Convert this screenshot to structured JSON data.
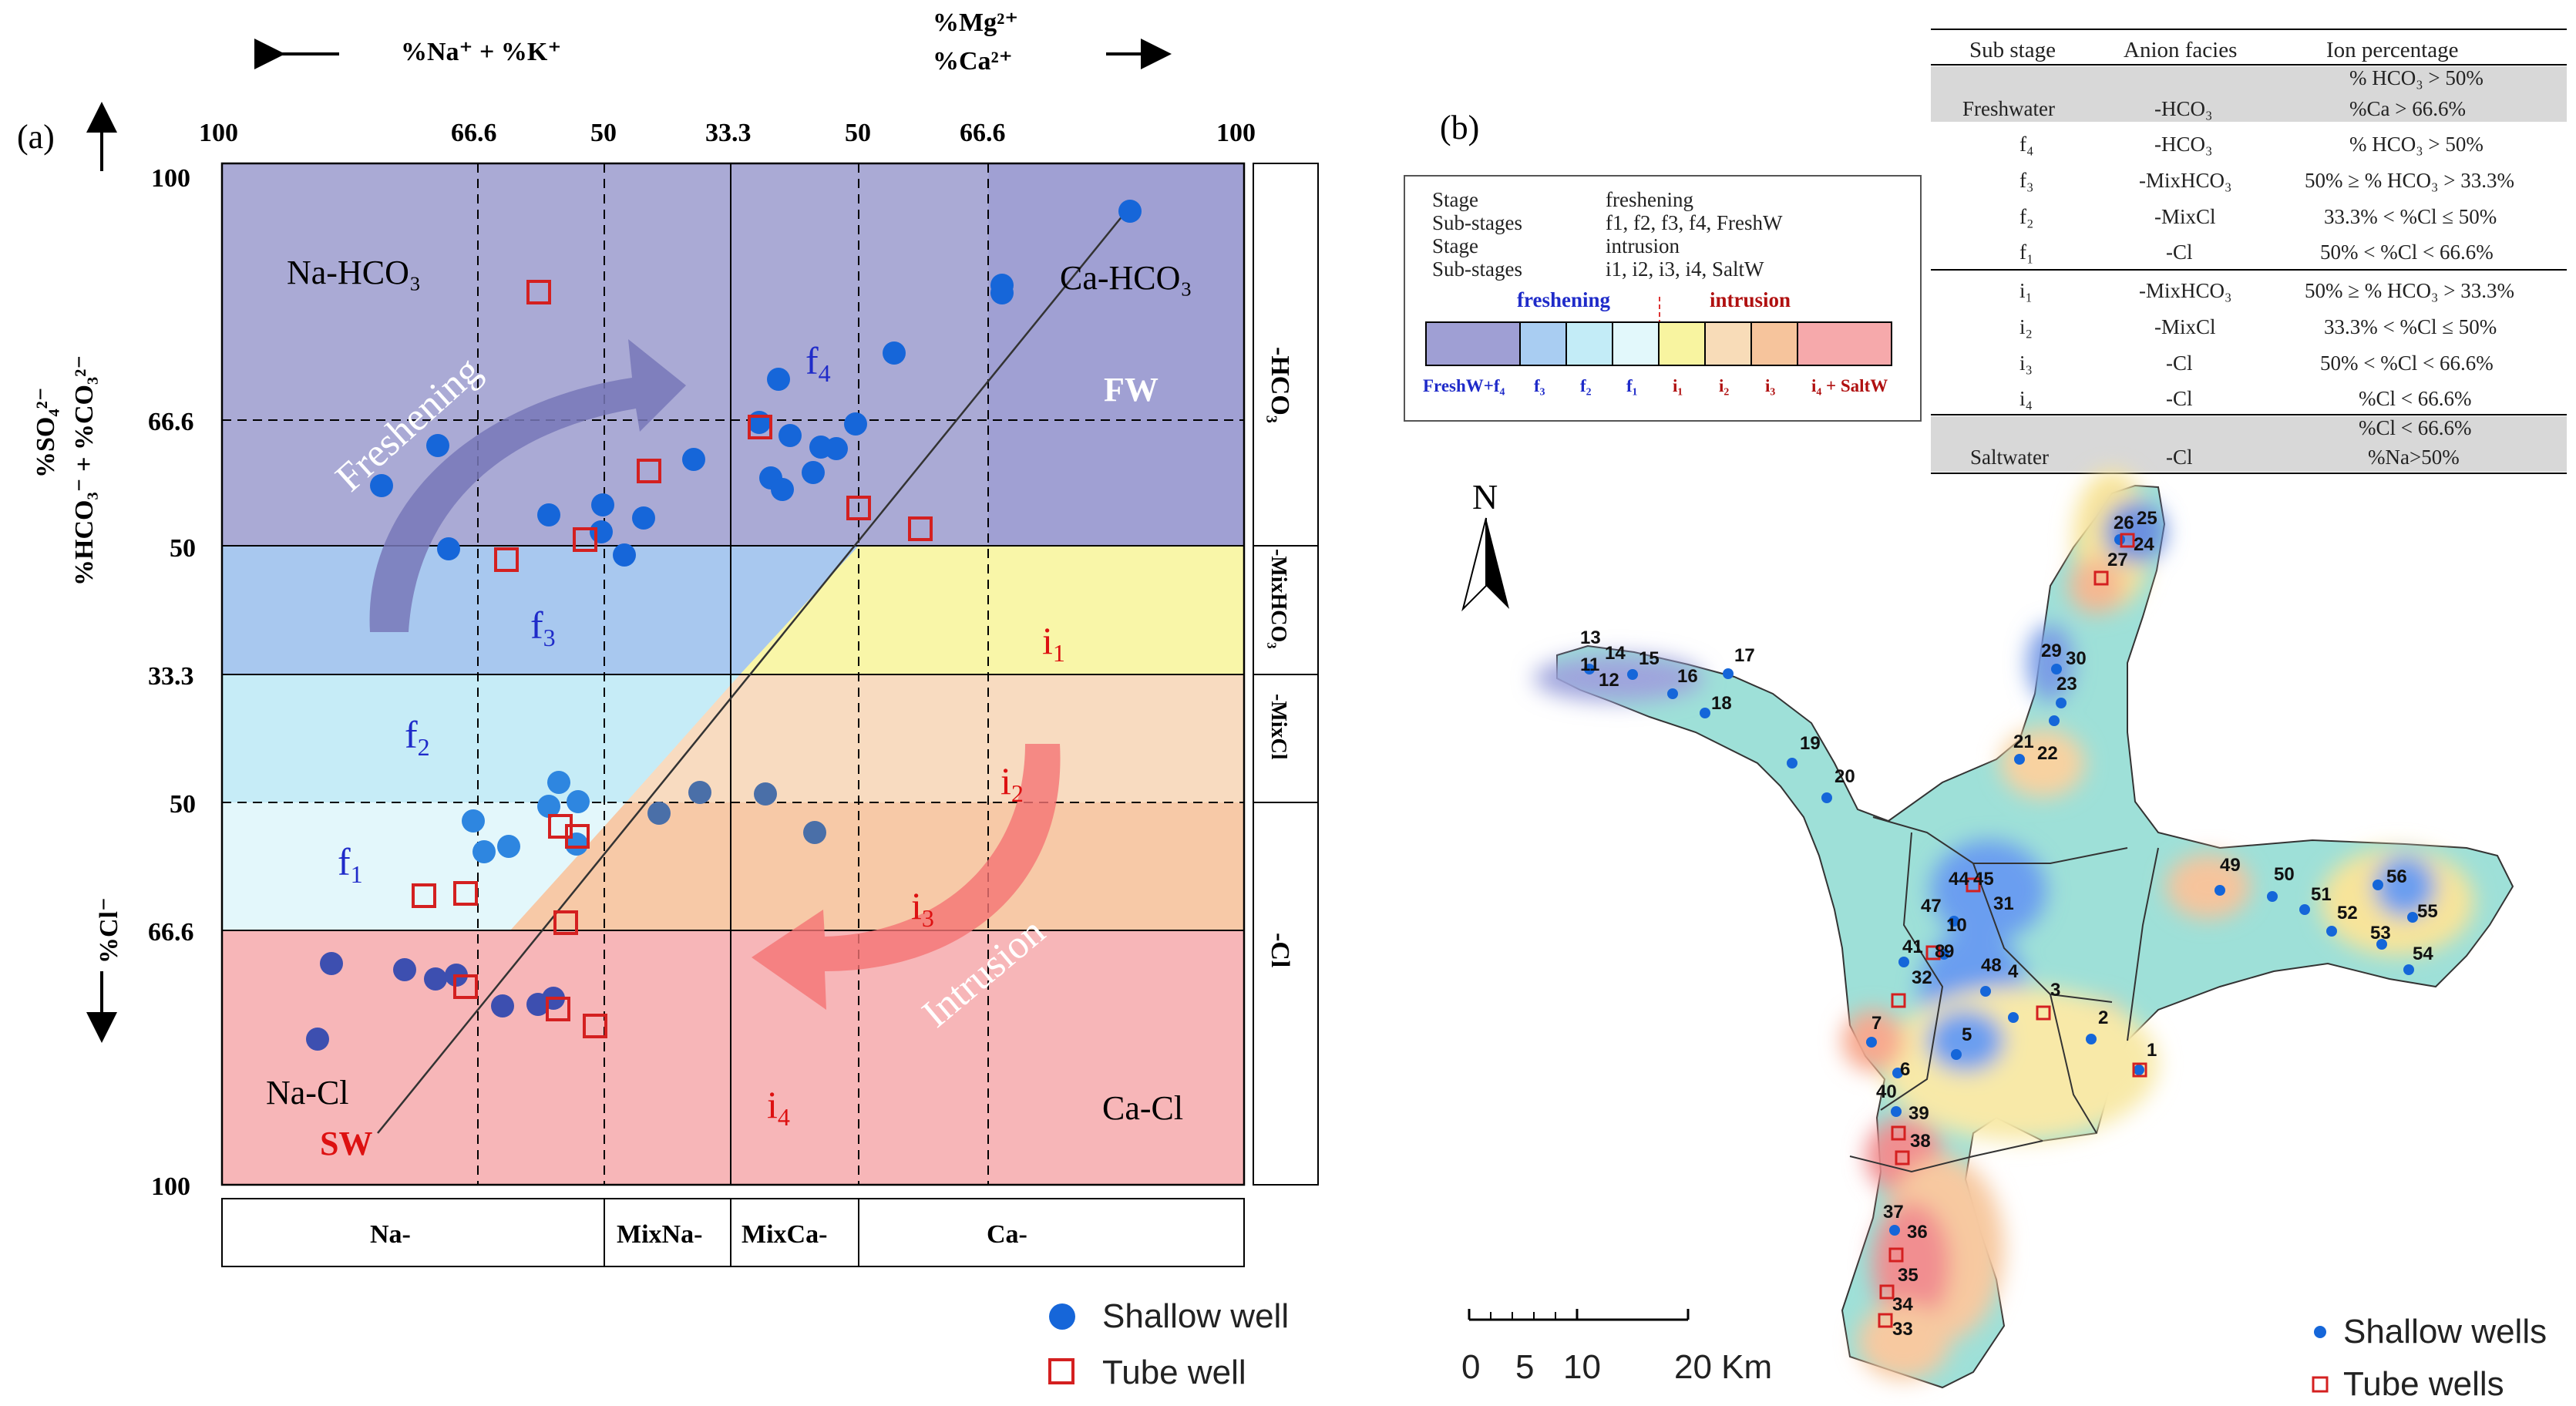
{
  "panel_a": {
    "label": "(a)",
    "top_axis_left": "%Na⁺ + %K⁺",
    "top_axis_right_1": "%Mg²⁺",
    "top_axis_right_2": "%Ca²⁺",
    "top_ticks": [
      "100",
      "66.6",
      "50",
      "33.3",
      "50",
      "66.6",
      "100"
    ],
    "left_axis_top_1": "%SO₄²⁻",
    "left_axis_top_2": "%HCO₃⁻ + %CO₃²⁻",
    "left_axis_bottom": "%Cl⁻",
    "left_ticks": [
      "100",
      "66.6",
      "50",
      "33.3",
      "50",
      "66.6",
      "100"
    ],
    "right_facies": [
      "-HCO₃",
      "-MixHCO₃",
      "-MixCl",
      "-Cl"
    ],
    "bottom_facies": [
      "Na-",
      "MixNa-",
      "MixCa-",
      "Ca-"
    ],
    "corners": {
      "tl": "Na-HCO₃",
      "tr": "Ca-HCO₃",
      "bl": "Na-Cl",
      "br": "Ca-Cl"
    },
    "fw_label": "FW",
    "sw_label": "SW",
    "freshening_label": "Freshening",
    "intrusion_label": "Intrusion",
    "substages": {
      "f4": "f",
      "f4_sub": "4",
      "f3": "f",
      "f3_sub": "3",
      "f2": "f",
      "f2_sub": "2",
      "f1": "f",
      "f1_sub": "1",
      "i1": "i",
      "i1_sub": "1",
      "i2": "i",
      "i2_sub": "2",
      "i3": "i",
      "i3_sub": "3",
      "i4": "i",
      "i4_sub": "4"
    },
    "legend": {
      "shallow": "Shallow well",
      "tube": "Tube well"
    },
    "colors": {
      "fw": "#a6a6d6",
      "f3": "#a9c8ef",
      "f2": "#c7ecf7",
      "f1": "#e4f7fb",
      "i1": "#f9f6a8",
      "i2": "#f8d8b8",
      "i3": "#f7c9a7",
      "i4": "#f7b6b8",
      "shallow": "#1666d9",
      "tube": "#d42020"
    }
  },
  "panel_b": {
    "label": "(b)",
    "legend_box": {
      "rows": [
        [
          "Stage",
          "freshening"
        ],
        [
          "Sub-stages",
          "f1, f2, f3, f4, FreshW"
        ],
        [
          "Stage",
          "intrusion"
        ],
        [
          "Sub-stages",
          "i1, i2, i3, i4, SaltW"
        ]
      ],
      "freshening": "freshening",
      "intrusion": "intrusion",
      "bar_labels": [
        "FreshW+f₄",
        "f₃",
        "f₂",
        "f₁",
        "i₁",
        "i₂",
        "i₃",
        "i₄ + SaltW"
      ],
      "bar_colors": [
        "#9f9fd4",
        "#a9cdf2",
        "#c3ecf7",
        "#e2f8fb",
        "#f8f4a0",
        "#f8dcb8",
        "#f6c49c",
        "#f6a9ab"
      ]
    },
    "table": {
      "headers": [
        "Sub stage",
        "Anion facies",
        "Ion percentage"
      ],
      "rows": [
        {
          "stage": "Freshwater",
          "facies": "-HCO₃",
          "ion": [
            "% HCO₃ > 50%",
            "%Ca > 66.6%"
          ],
          "shade": true
        },
        {
          "stage": "f₄",
          "facies": "-HCO₃",
          "ion": [
            "% HCO₃ > 50%"
          ],
          "shade": false
        },
        {
          "stage": "f₃",
          "facies": "-MixHCO₃",
          "ion": [
            "50% ≥ % HCO₃ > 33.3%"
          ],
          "shade": false
        },
        {
          "stage": "f₂",
          "facies": "-MixCl",
          "ion": [
            "33.3% < %Cl ≤ 50%"
          ],
          "shade": false
        },
        {
          "stage": "f₁",
          "facies": "-Cl",
          "ion": [
            "50% < %Cl < 66.6%"
          ],
          "shade": false
        },
        {
          "stage": "i₁",
          "facies": "-MixHCO₃",
          "ion": [
            "50% ≥ % HCO₃ > 33.3%"
          ],
          "shade": false
        },
        {
          "stage": "i₂",
          "facies": "-MixCl",
          "ion": [
            "33.3% < %Cl ≤ 50%"
          ],
          "shade": false
        },
        {
          "stage": "i₃",
          "facies": "-Cl",
          "ion": [
            "50% < %Cl < 66.6%"
          ],
          "shade": false
        },
        {
          "stage": "i₄",
          "facies": "-Cl",
          "ion": [
            "%Cl < 66.6%"
          ],
          "shade": false
        },
        {
          "stage": "Saltwater",
          "facies": "-Cl",
          "ion": [
            "%Cl < 66.6%",
            "%Na>50%"
          ],
          "shade": true
        }
      ]
    },
    "north": "N",
    "scale_labels": [
      "0",
      "5",
      "10",
      "20 Km"
    ],
    "legend": {
      "shallow": "Shallow wells",
      "tube": "Tube wells"
    },
    "well_numbers": [
      "1",
      "2",
      "3",
      "4",
      "5",
      "6",
      "7",
      "8",
      "9",
      "10",
      "11",
      "12",
      "13",
      "14",
      "15",
      "16",
      "17",
      "18",
      "19",
      "20",
      "21",
      "22",
      "23",
      "24",
      "25",
      "26",
      "27",
      "29",
      "30",
      "31",
      "32",
      "33",
      "34",
      "35",
      "36",
      "37",
      "38",
      "39",
      "40",
      "41",
      "44",
      "45",
      "47",
      "48",
      "49",
      "50",
      "51",
      "52",
      "53",
      "54",
      "55",
      "56"
    ]
  }
}
